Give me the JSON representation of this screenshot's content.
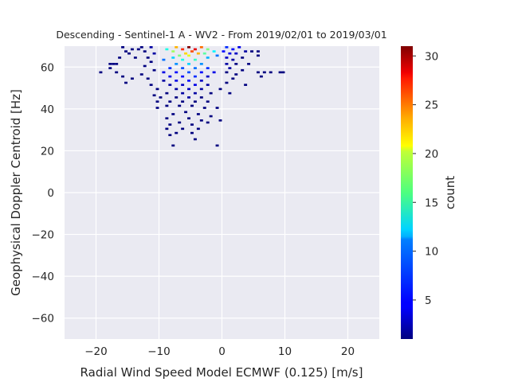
{
  "chart_data": {
    "type": "heatmap",
    "title": "Descending - Sentinel-1 A - WV2 - From 2019/02/01 to 2019/03/01",
    "xlabel": "Radial Wind Speed Model ECMWF (0.125) [m/s]",
    "ylabel": "Geophysical Doppler Centroid [Hz]",
    "xlim": [
      -25,
      25
    ],
    "ylim": [
      -70,
      70
    ],
    "x_ticks": [
      -20,
      -10,
      0,
      10,
      20
    ],
    "y_ticks": [
      -60,
      -40,
      -20,
      0,
      20,
      40,
      60
    ],
    "grid": true,
    "colormap": "jet",
    "colorbar": {
      "label": "count",
      "min": 1,
      "max": 31,
      "ticks": [
        5,
        10,
        15,
        20,
        25,
        30
      ]
    },
    "bin_size": {
      "x": 0.5,
      "y": 1
    },
    "cells": [
      [
        -5.5,
        69,
        31
      ],
      [
        -4.5,
        68,
        28
      ],
      [
        -6.5,
        68,
        26
      ],
      [
        -3.5,
        69,
        24
      ],
      [
        -7.5,
        69,
        22
      ],
      [
        -5.0,
        67,
        25
      ],
      [
        -4.0,
        66,
        22
      ],
      [
        -6.0,
        66,
        21
      ],
      [
        -8.0,
        67,
        17
      ],
      [
        -2.5,
        68,
        16
      ],
      [
        -5.5,
        65,
        19
      ],
      [
        -7.0,
        65,
        16
      ],
      [
        -3.0,
        66,
        15
      ],
      [
        -9.0,
        68,
        13
      ],
      [
        -1.5,
        67,
        12
      ],
      [
        -4.5,
        63,
        14
      ],
      [
        -6.5,
        63,
        13
      ],
      [
        -8.0,
        64,
        11
      ],
      [
        -2.5,
        64,
        10
      ],
      [
        -5.5,
        61,
        11
      ],
      [
        -3.5,
        61,
        9
      ],
      [
        -7.5,
        61,
        9
      ],
      [
        -9.5,
        63,
        8
      ],
      [
        -1.0,
        65,
        8
      ],
      [
        -4.5,
        59,
        8
      ],
      [
        -6.5,
        59,
        7
      ],
      [
        -8.5,
        59,
        6
      ],
      [
        -2.5,
        59,
        6
      ],
      [
        -5.5,
        57,
        7
      ],
      [
        -3.5,
        57,
        5
      ],
      [
        -7.5,
        57,
        5
      ],
      [
        -9.5,
        57,
        4
      ],
      [
        -1.5,
        57,
        4
      ],
      [
        -4.5,
        55,
        6
      ],
      [
        -6.5,
        55,
        5
      ],
      [
        -8.5,
        55,
        4
      ],
      [
        -2.5,
        55,
        3
      ],
      [
        -5.5,
        53,
        5
      ],
      [
        -3.5,
        53,
        3
      ],
      [
        -7.5,
        53,
        4
      ],
      [
        -9.5,
        53,
        2
      ],
      [
        -4.5,
        51,
        4
      ],
      [
        -6.5,
        51,
        3
      ],
      [
        -8.5,
        51,
        2
      ],
      [
        -2.5,
        51,
        2
      ],
      [
        -5.5,
        49,
        3
      ],
      [
        -7.5,
        49,
        2
      ],
      [
        -3.5,
        49,
        2
      ],
      [
        -4.5,
        47,
        2
      ],
      [
        -6.5,
        47,
        2
      ],
      [
        -9.0,
        47,
        1
      ],
      [
        -2.0,
        47,
        1
      ],
      [
        -5.5,
        45,
        2
      ],
      [
        -7.5,
        45,
        1
      ],
      [
        -3.5,
        45,
        1
      ],
      [
        -10.0,
        45,
        1
      ],
      [
        -6.5,
        43,
        1
      ],
      [
        -4.5,
        43,
        1
      ],
      [
        -8.5,
        43,
        1
      ],
      [
        -2.5,
        43,
        1
      ],
      [
        -7.0,
        41,
        1
      ],
      [
        -5.0,
        41,
        1
      ],
      [
        -9.0,
        41,
        1
      ],
      [
        -3.0,
        40,
        1
      ],
      [
        -1.0,
        40,
        1
      ],
      [
        -10.5,
        40,
        1
      ],
      [
        -6.0,
        38,
        1
      ],
      [
        -8.0,
        37,
        1
      ],
      [
        -4.0,
        37,
        1
      ],
      [
        -2.0,
        36,
        1
      ],
      [
        -9.0,
        35,
        1
      ],
      [
        -5.5,
        35,
        1
      ],
      [
        -7.0,
        33,
        1
      ],
      [
        -3.5,
        34,
        1
      ],
      [
        -0.5,
        34,
        1
      ],
      [
        -8.5,
        32,
        1
      ],
      [
        -5.0,
        32,
        1
      ],
      [
        -2.5,
        33,
        1
      ],
      [
        -6.5,
        30,
        1
      ],
      [
        -9.0,
        30,
        1
      ],
      [
        -4.0,
        30,
        1
      ],
      [
        -7.5,
        28,
        1
      ],
      [
        -5.0,
        28,
        1
      ],
      [
        -8.5,
        27,
        1
      ],
      [
        -4.5,
        25,
        1
      ],
      [
        -8.0,
        22,
        1
      ],
      [
        -1.0,
        22,
        1
      ],
      [
        0.5,
        69,
        6
      ],
      [
        1.5,
        68,
        5
      ],
      [
        2.5,
        69,
        4
      ],
      [
        0.0,
        67,
        5
      ],
      [
        1.0,
        66,
        4
      ],
      [
        2.0,
        66,
        3
      ],
      [
        3.5,
        67,
        2
      ],
      [
        4.5,
        67,
        1
      ],
      [
        5.5,
        67,
        1
      ],
      [
        0.5,
        64,
        3
      ],
      [
        1.5,
        63,
        2
      ],
      [
        3.0,
        64,
        1
      ],
      [
        5.5,
        65,
        1
      ],
      [
        0.5,
        61,
        2
      ],
      [
        2.0,
        61,
        1
      ],
      [
        4.0,
        61,
        1
      ],
      [
        1.0,
        59,
        2
      ],
      [
        3.0,
        58,
        1
      ],
      [
        0.5,
        57,
        1
      ],
      [
        2.0,
        56,
        1
      ],
      [
        5.5,
        57,
        1
      ],
      [
        6.5,
        57,
        1
      ],
      [
        7.5,
        57,
        1
      ],
      [
        1.5,
        54,
        1
      ],
      [
        6.0,
        55,
        1
      ],
      [
        0.5,
        52,
        1
      ],
      [
        3.5,
        51,
        1
      ],
      [
        -0.5,
        49,
        1
      ],
      [
        1.0,
        47,
        1
      ],
      [
        -11.5,
        69,
        2
      ],
      [
        -12.5,
        67,
        1
      ],
      [
        -13.0,
        69,
        1
      ],
      [
        -11.0,
        66,
        2
      ],
      [
        -12.0,
        64,
        1
      ],
      [
        -14.0,
        64,
        1
      ],
      [
        -11.5,
        62,
        1
      ],
      [
        -12.5,
        60,
        1
      ],
      [
        -11.0,
        58,
        1
      ],
      [
        -13.0,
        56,
        1
      ],
      [
        -12.0,
        54,
        1
      ],
      [
        -11.5,
        51,
        1
      ],
      [
        -10.5,
        49,
        1
      ],
      [
        -11.0,
        46,
        1
      ],
      [
        -10.5,
        43,
        1
      ],
      [
        -13.5,
        68,
        1
      ],
      [
        -15.0,
        66,
        1
      ],
      [
        -14.5,
        68,
        1
      ],
      [
        -17.5,
        61,
        1
      ],
      [
        -18.0,
        61,
        1
      ],
      [
        -17.0,
        61,
        1
      ],
      [
        -19.5,
        57,
        1
      ],
      [
        -18.0,
        59,
        1
      ],
      [
        -17.0,
        57,
        1
      ],
      [
        -16.0,
        55,
        1
      ],
      [
        -15.5,
        52,
        1
      ],
      [
        -14.5,
        54,
        1
      ],
      [
        -16.5,
        64,
        1
      ],
      [
        -16.0,
        69,
        1
      ],
      [
        -15.5,
        67,
        1
      ],
      [
        9.0,
        57,
        1
      ],
      [
        9.5,
        57,
        1
      ]
    ]
  }
}
